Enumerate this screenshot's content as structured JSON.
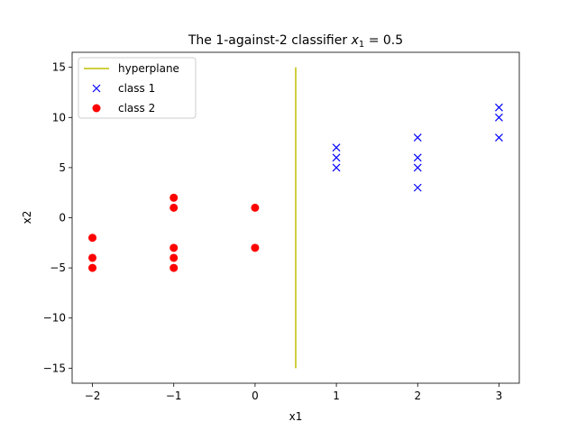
{
  "chart_data": {
    "type": "scatter",
    "title": "The 1-against-2 classifier x₁ = 0.5",
    "title_parts": {
      "prefix": "The 1-against-2 classifier ",
      "var": "x",
      "sub": "1",
      "suffix": " = 0.5"
    },
    "xlabel": "x1",
    "ylabel": "x2",
    "xlim": [
      -2.25,
      3.25
    ],
    "ylim": [
      -16.5,
      16.5
    ],
    "xticks": [
      -2,
      -1,
      0,
      1,
      2,
      3
    ],
    "yticks": [
      -15,
      -10,
      -5,
      0,
      5,
      10,
      15
    ],
    "grid": false,
    "legend_position": "top-left",
    "series": [
      {
        "name": "hyperplane",
        "kind": "line",
        "color": "#bfbf00",
        "points": [
          [
            0.5,
            -15
          ],
          [
            0.5,
            15
          ]
        ]
      },
      {
        "name": "class 1",
        "kind": "marker-x",
        "color": "#0000ff",
        "points": [
          [
            1,
            7
          ],
          [
            1,
            6
          ],
          [
            1,
            5
          ],
          [
            2,
            8
          ],
          [
            2,
            6
          ],
          [
            2,
            5
          ],
          [
            2,
            3
          ],
          [
            3,
            11
          ],
          [
            3,
            10
          ],
          [
            3,
            8
          ]
        ]
      },
      {
        "name": "class 2",
        "kind": "marker-o",
        "color": "#ff0000",
        "points": [
          [
            -2,
            -2
          ],
          [
            -2,
            -4
          ],
          [
            -2,
            -5
          ],
          [
            -1,
            2
          ],
          [
            -1,
            1
          ],
          [
            -1,
            -3
          ],
          [
            -1,
            -4
          ],
          [
            -1,
            -5
          ],
          [
            0,
            1
          ],
          [
            0,
            -3
          ]
        ]
      }
    ]
  }
}
